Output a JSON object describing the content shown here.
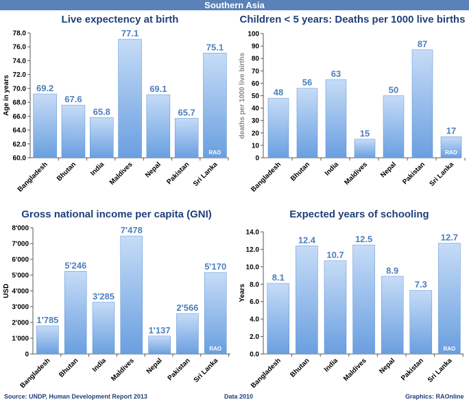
{
  "banner": {
    "title": "Southern Asia"
  },
  "footer": {
    "source": "Source: UNDP,  Human Development Report 2013",
    "data": "Data 2010",
    "graphics": "Graphics: RAOnline"
  },
  "chart_data": [
    {
      "type": "bar",
      "title": "Live expectency at birth",
      "ylabel": "Age in years",
      "categories": [
        "Bangladesh",
        "Bhutan",
        "India",
        "Maldives",
        "Nepal",
        "Pakistan",
        "Sri Lanka"
      ],
      "values": [
        69.2,
        67.6,
        65.8,
        77.1,
        69.1,
        65.7,
        75.1
      ],
      "value_labels": [
        "69.2",
        "67.6",
        "65.8",
        "77.1",
        "69.1",
        "65.7",
        "75.1"
      ],
      "ylim": [
        60,
        78
      ],
      "yticks": [
        60,
        62,
        64,
        66,
        68,
        70,
        72,
        74,
        76,
        78
      ],
      "ytick_labels": [
        "60.0",
        "62.0",
        "64.0",
        "66.0",
        "68.0",
        "70.0",
        "72.0",
        "74.0",
        "76.0",
        "78.0"
      ],
      "watermark": "RAO",
      "grid": false,
      "bar_color": "#6a9fe0"
    },
    {
      "type": "bar",
      "title": "Children < 5 years: Deaths per 1000 live births",
      "ylabel": "deaths per 1000 live births",
      "categories": [
        "Bangladesh",
        "Bhutan",
        "India",
        "Maldives",
        "Nepal",
        "Pakistan",
        "Sri Lanka"
      ],
      "values": [
        48,
        56,
        63,
        15,
        50,
        87,
        17
      ],
      "value_labels": [
        "48",
        "56",
        "63",
        "15",
        "50",
        "87",
        "17"
      ],
      "ylim": [
        0,
        100
      ],
      "yticks": [
        0,
        10,
        20,
        30,
        40,
        50,
        60,
        70,
        80,
        90,
        100
      ],
      "ytick_labels": [
        "0",
        "10",
        "20",
        "30",
        "40",
        "50",
        "60",
        "70",
        "80",
        "90",
        "100"
      ],
      "watermark": "RAO",
      "grid": false,
      "bar_color": "#6a9fe0"
    },
    {
      "type": "bar",
      "title": "Gross national income per capita (GNI)",
      "ylabel": "USD",
      "categories": [
        "Bangladesh",
        "Bhutan",
        "India",
        "Maldives",
        "Nepal",
        "Pakistan",
        "Sri Lanka"
      ],
      "values": [
        1785,
        5246,
        3285,
        7478,
        1137,
        2566,
        5170
      ],
      "value_labels": [
        "1'785",
        "5'246",
        "3'285",
        "7'478",
        "1'137",
        "2'566",
        "5'170"
      ],
      "ylim": [
        0,
        8000
      ],
      "yticks": [
        0,
        1000,
        2000,
        3000,
        4000,
        5000,
        6000,
        7000,
        8000
      ],
      "ytick_labels": [
        "0",
        "1'000",
        "2'000",
        "3'000",
        "4'000",
        "5'000",
        "6'000",
        "7'000",
        "8'000"
      ],
      "watermark": "RAO",
      "grid": false,
      "bar_color": "#6a9fe0"
    },
    {
      "type": "bar",
      "title": "Expected years of schooling",
      "ylabel": "Years",
      "categories": [
        "Bangladesh",
        "Bhutan",
        "India",
        "Maldives",
        "Nepal",
        "Pakistan",
        "Sri Lanka"
      ],
      "values": [
        8.1,
        12.4,
        10.7,
        12.5,
        8.9,
        7.3,
        12.7
      ],
      "value_labels": [
        "8.1",
        "12.4",
        "10.7",
        "12.5",
        "8.9",
        "7.3",
        "12.7"
      ],
      "ylim": [
        0,
        14
      ],
      "yticks": [
        0,
        2,
        4,
        6,
        8,
        10,
        12,
        14
      ],
      "ytick_labels": [
        "0.0",
        "2.0",
        "4.0",
        "6.0",
        "8.0",
        "10.0",
        "12.0",
        "14.0"
      ],
      "watermark": "RAO",
      "grid": false,
      "bar_color": "#6a9fe0"
    }
  ]
}
